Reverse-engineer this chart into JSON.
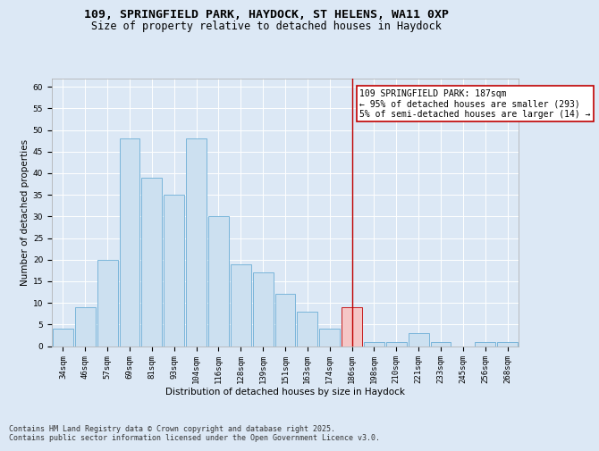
{
  "title1": "109, SPRINGFIELD PARK, HAYDOCK, ST HELENS, WA11 0XP",
  "title2": "Size of property relative to detached houses in Haydock",
  "xlabel": "Distribution of detached houses by size in Haydock",
  "ylabel": "Number of detached properties",
  "categories": [
    "34sqm",
    "46sqm",
    "57sqm",
    "69sqm",
    "81sqm",
    "93sqm",
    "104sqm",
    "116sqm",
    "128sqm",
    "139sqm",
    "151sqm",
    "163sqm",
    "174sqm",
    "186sqm",
    "198sqm",
    "210sqm",
    "221sqm",
    "233sqm",
    "245sqm",
    "256sqm",
    "268sqm"
  ],
  "values": [
    4,
    9,
    20,
    48,
    39,
    35,
    48,
    30,
    19,
    17,
    12,
    8,
    4,
    9,
    1,
    1,
    3,
    1,
    0,
    1,
    1
  ],
  "bar_color": "#cce0f0",
  "bar_edge_color": "#6baed6",
  "highlight_bar_index": 13,
  "highlight_bar_color": "#f5c6c6",
  "highlight_bar_edge_color": "#c00000",
  "vline_color": "#c00000",
  "annotation_text": "109 SPRINGFIELD PARK: 187sqm\n← 95% of detached houses are smaller (293)\n5% of semi-detached houses are larger (14) →",
  "annotation_box_color": "#ffffff",
  "annotation_box_edge_color": "#c00000",
  "ylim": [
    0,
    62
  ],
  "yticks": [
    0,
    5,
    10,
    15,
    20,
    25,
    30,
    35,
    40,
    45,
    50,
    55,
    60
  ],
  "bg_color": "#dce8f5",
  "plot_bg_color": "#dce8f5",
  "grid_color": "#ffffff",
  "footer_text": "Contains HM Land Registry data © Crown copyright and database right 2025.\nContains public sector information licensed under the Open Government Licence v3.0.",
  "title_fontsize": 9.5,
  "subtitle_fontsize": 8.5,
  "axis_label_fontsize": 7.5,
  "tick_fontsize": 6.5,
  "annotation_fontsize": 7,
  "footer_fontsize": 6
}
